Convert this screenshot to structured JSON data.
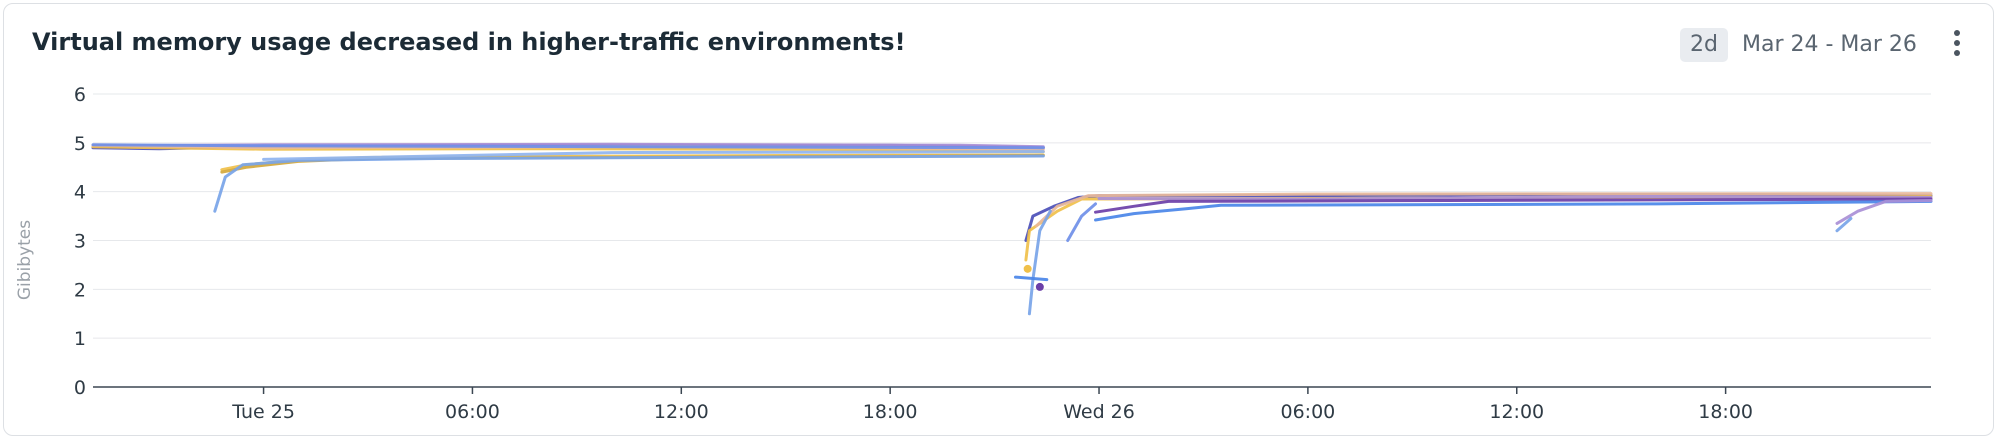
{
  "widget": {
    "title": "Virtual memory usage decreased in higher-traffic environments!",
    "time_badge": "2d",
    "date_range": "Mar 24 - Mar 26",
    "menu_icon": "kebab-vertical-icon"
  },
  "chart_data": {
    "type": "line",
    "title": "Virtual memory usage decreased in higher-traffic environments!",
    "xlabel": "",
    "ylabel": "Gibibytes",
    "ylim": [
      0,
      6
    ],
    "yticks": [
      0,
      1,
      2,
      3,
      4,
      5,
      6
    ],
    "xlim": [
      -4.9,
      47.9
    ],
    "xticks": [
      {
        "t": 0,
        "label": "Tue 25"
      },
      {
        "t": 6,
        "label": "06:00"
      },
      {
        "t": 12,
        "label": "12:00"
      },
      {
        "t": 18,
        "label": "18:00"
      },
      {
        "t": 24,
        "label": "Wed 26"
      },
      {
        "t": 30,
        "label": "06:00"
      },
      {
        "t": 36,
        "label": "12:00"
      },
      {
        "t": 42,
        "label": "18:00"
      }
    ],
    "grid": true,
    "legend": "none",
    "series": [
      {
        "color": "#4b4fb8",
        "points": [
          [
            -4.9,
            4.9
          ],
          [
            -3,
            4.88
          ],
          [
            0,
            4.93
          ],
          [
            6,
            4.95
          ],
          [
            12,
            4.95
          ],
          [
            18,
            4.95
          ],
          [
            22.4,
            4.9
          ]
        ]
      },
      {
        "color": "#a98fd6",
        "points": [
          [
            -4.9,
            4.94
          ],
          [
            0,
            4.96
          ],
          [
            10,
            4.97
          ],
          [
            20,
            4.95
          ],
          [
            22.4,
            4.92
          ]
        ]
      },
      {
        "color": "#f0c04a",
        "points": [
          [
            -4.9,
            4.92
          ],
          [
            0,
            4.87
          ],
          [
            8,
            4.88
          ],
          [
            16,
            4.87
          ],
          [
            22.4,
            4.82
          ]
        ]
      },
      {
        "color": "#e8b89a",
        "points": [
          [
            -4.9,
            4.95
          ],
          [
            0,
            4.9
          ],
          [
            12,
            4.92
          ],
          [
            22.4,
            4.87
          ]
        ]
      },
      {
        "color": "#6f8fe8",
        "points": [
          [
            -4.9,
            4.96
          ],
          [
            0,
            4.94
          ],
          [
            22.4,
            4.9
          ]
        ]
      },
      {
        "color": "#f0c04a",
        "points": [
          [
            -1.2,
            4.45
          ],
          [
            -0.5,
            4.55
          ],
          [
            1,
            4.65
          ],
          [
            3,
            4.7
          ],
          [
            8,
            4.72
          ],
          [
            15,
            4.74
          ],
          [
            22.4,
            4.75
          ]
        ]
      },
      {
        "color": "#d4a83c",
        "points": [
          [
            -1.2,
            4.4
          ],
          [
            -0.5,
            4.5
          ],
          [
            1,
            4.62
          ],
          [
            3,
            4.68
          ],
          [
            10,
            4.7
          ],
          [
            22.4,
            4.74
          ]
        ]
      },
      {
        "color": "#78a4e8",
        "points": [
          [
            -1.4,
            3.6
          ],
          [
            -1.1,
            4.3
          ],
          [
            -0.6,
            4.55
          ],
          [
            1,
            4.64
          ],
          [
            5,
            4.68
          ],
          [
            22.4,
            4.73
          ]
        ]
      },
      {
        "color": "#8fb4f0",
        "points": [
          [
            0,
            4.66
          ],
          [
            10,
            4.8
          ],
          [
            22.4,
            4.82
          ]
        ]
      },
      {
        "color": "#4b4fb8",
        "points": [
          [
            21.9,
            3.0
          ],
          [
            22.1,
            3.5
          ],
          [
            22.7,
            3.7
          ],
          [
            23.4,
            3.88
          ],
          [
            24,
            3.92
          ],
          [
            30,
            3.92
          ],
          [
            40,
            3.95
          ],
          [
            47.9,
            3.92
          ]
        ]
      },
      {
        "color": "#f0c04a",
        "points": [
          [
            21.9,
            2.6
          ],
          [
            22,
            3.2
          ],
          [
            22.8,
            3.6
          ],
          [
            23.5,
            3.85
          ],
          [
            24.5,
            3.85
          ],
          [
            35,
            3.87
          ],
          [
            47.9,
            3.9
          ]
        ]
      },
      {
        "color": "#e8b89a",
        "points": [
          [
            22.2,
            3.3
          ],
          [
            22.8,
            3.7
          ],
          [
            23.7,
            3.92
          ],
          [
            30,
            3.95
          ],
          [
            47.9,
            3.96
          ]
        ]
      },
      {
        "color": "#a98fd6",
        "points": [
          [
            24,
            3.86
          ],
          [
            30,
            3.85
          ],
          [
            40,
            3.9
          ],
          [
            47.9,
            3.88
          ]
        ]
      },
      {
        "color": "#6b3fa8",
        "points": [
          [
            23.9,
            3.58
          ],
          [
            25,
            3.7
          ],
          [
            26,
            3.8
          ],
          [
            34,
            3.82
          ],
          [
            47.9,
            3.85
          ]
        ]
      },
      {
        "color": "#4a86e8",
        "points": [
          [
            23.9,
            3.42
          ],
          [
            25,
            3.55
          ],
          [
            26.5,
            3.65
          ],
          [
            27.5,
            3.72
          ],
          [
            40,
            3.75
          ],
          [
            47.9,
            3.8
          ]
        ]
      },
      {
        "color": "#78a4e8",
        "points": [
          [
            22,
            1.5
          ],
          [
            22.1,
            2.2
          ],
          [
            22.3,
            3.2
          ],
          [
            22.6,
            3.6
          ]
        ]
      },
      {
        "color": "#6f8fe8",
        "points": [
          [
            23.1,
            3.0
          ],
          [
            23.5,
            3.5
          ],
          [
            23.9,
            3.75
          ]
        ]
      },
      {
        "color": "#4a86e8",
        "points": [
          [
            21.6,
            2.25
          ],
          [
            22.5,
            2.2
          ]
        ]
      },
      {
        "color": "#a98fd6",
        "points": [
          [
            45.2,
            3.35
          ],
          [
            45.8,
            3.6
          ],
          [
            46.6,
            3.8
          ],
          [
            47.9,
            3.82
          ]
        ]
      },
      {
        "color": "#78a4e8",
        "points": [
          [
            45.2,
            3.2
          ],
          [
            45.6,
            3.45
          ]
        ]
      }
    ],
    "markers": [
      {
        "color": "#6b3fa8",
        "x": 22.3,
        "y": 2.05
      },
      {
        "color": "#f0c04a",
        "x": 21.95,
        "y": 2.42
      }
    ]
  }
}
